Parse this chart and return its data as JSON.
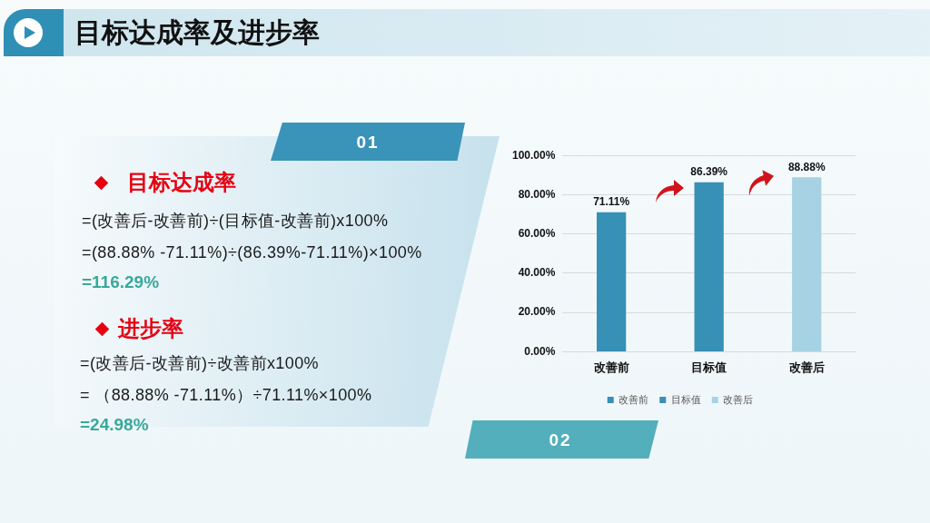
{
  "chart_data": {
    "type": "bar",
    "title": "目标达成率及进步率",
    "categories": [
      "改善前",
      "目标值",
      "改善后"
    ],
    "series": [
      {
        "name": "改善前",
        "color": "#3790b6",
        "values": [
          71.11,
          null,
          null
        ],
        "value_labels": [
          "71.11%",
          null,
          null
        ]
      },
      {
        "name": "目标值",
        "color": "#3790b6",
        "values": [
          null,
          86.39,
          null
        ],
        "value_labels": [
          null,
          "86.39%",
          null
        ]
      },
      {
        "name": "改善后",
        "color": "#a6d2e3",
        "values": [
          null,
          null,
          88.88
        ],
        "value_labels": [
          null,
          null,
          "88.88%"
        ]
      }
    ],
    "ylim": [
      0,
      100
    ],
    "yticks": [
      {
        "value": 0,
        "label": "0.00%"
      },
      {
        "value": 20,
        "label": "20.00%"
      },
      {
        "value": 40,
        "label": "40.00%"
      },
      {
        "value": 60,
        "label": "60.00%"
      },
      {
        "value": 80,
        "label": "80.00%"
      },
      {
        "value": 100,
        "label": "100.00%"
      }
    ],
    "grid": "y",
    "legend": "bottom",
    "annotations": [
      "01",
      "目标达成率",
      "=(改善后-改善前)÷(目标值-改善前)x100%",
      "=(88.88% -71.11%)÷(86.39%-71.11%)×100%",
      "=116.29%",
      "进步率",
      "=(改善后-改善前)÷改善前x100%",
      "= （88.88% -71.11%）÷71.11%×100%",
      "=24.98%",
      "02"
    ]
  }
}
